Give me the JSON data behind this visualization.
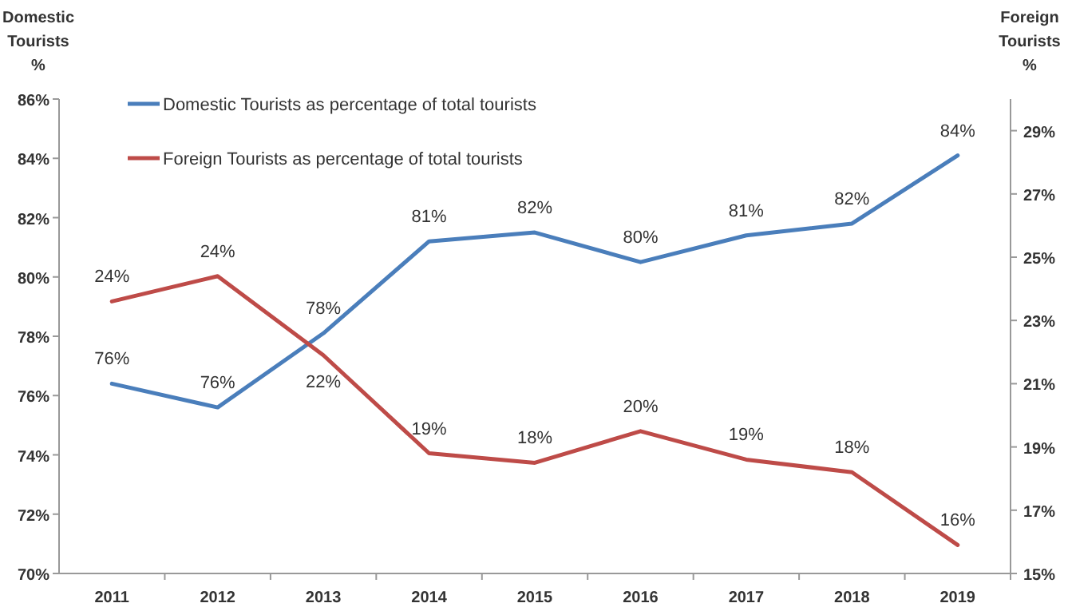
{
  "chart_data": {
    "type": "line",
    "ylabel": "Domestic Tourists %",
    "y2label": "Foreign Tourists %",
    "categories": [
      "2011",
      "2012",
      "2013",
      "2014",
      "2015",
      "2016",
      "2017",
      "2018",
      "2019"
    ],
    "series": [
      {
        "name": "Domestic Tourists as percentage of total tourists",
        "color": "#4a7ebb",
        "values": [
          76.4,
          75.6,
          78.1,
          81.2,
          81.5,
          80.5,
          81.4,
          81.8,
          84.1
        ],
        "value_labels": [
          "76%",
          "76%",
          "78%",
          "81%",
          "82%",
          "80%",
          "81%",
          "82%",
          "84%"
        ]
      },
      {
        "name": "Foreign Tourists as percentage of total tourists",
        "color": "#be4b48",
        "axis": "y2",
        "values": [
          23.6,
          24.4,
          21.9,
          18.8,
          18.5,
          19.5,
          18.6,
          18.2,
          15.9
        ],
        "value_labels": [
          "24%",
          "24%",
          "22%",
          "19%",
          "18%",
          "20%",
          "19%",
          "18%",
          "16%"
        ]
      }
    ],
    "ylim": [
      70,
      86
    ],
    "yticks": [
      {
        "value": 70,
        "label": "70%"
      },
      {
        "value": 72,
        "label": "72%"
      },
      {
        "value": 74,
        "label": "74%"
      },
      {
        "value": 76,
        "label": "76%"
      },
      {
        "value": 78,
        "label": "78%"
      },
      {
        "value": 80,
        "label": "80%"
      },
      {
        "value": 82,
        "label": "82%"
      },
      {
        "value": 84,
        "label": "84%"
      },
      {
        "value": 86,
        "label": "86%"
      }
    ],
    "y2lim": [
      15,
      30
    ],
    "y2ticks": [
      {
        "value": 15,
        "label": "15%"
      },
      {
        "value": 17,
        "label": "17%"
      },
      {
        "value": 19,
        "label": "19%"
      },
      {
        "value": 21,
        "label": "21%"
      },
      {
        "value": 23,
        "label": "23%"
      },
      {
        "value": 25,
        "label": "25%"
      },
      {
        "value": 27,
        "label": "27%"
      },
      {
        "value": 29,
        "label": "29%"
      }
    ],
    "legend": "top left",
    "grid": false,
    "marker": "none",
    "line_style": "solid"
  }
}
